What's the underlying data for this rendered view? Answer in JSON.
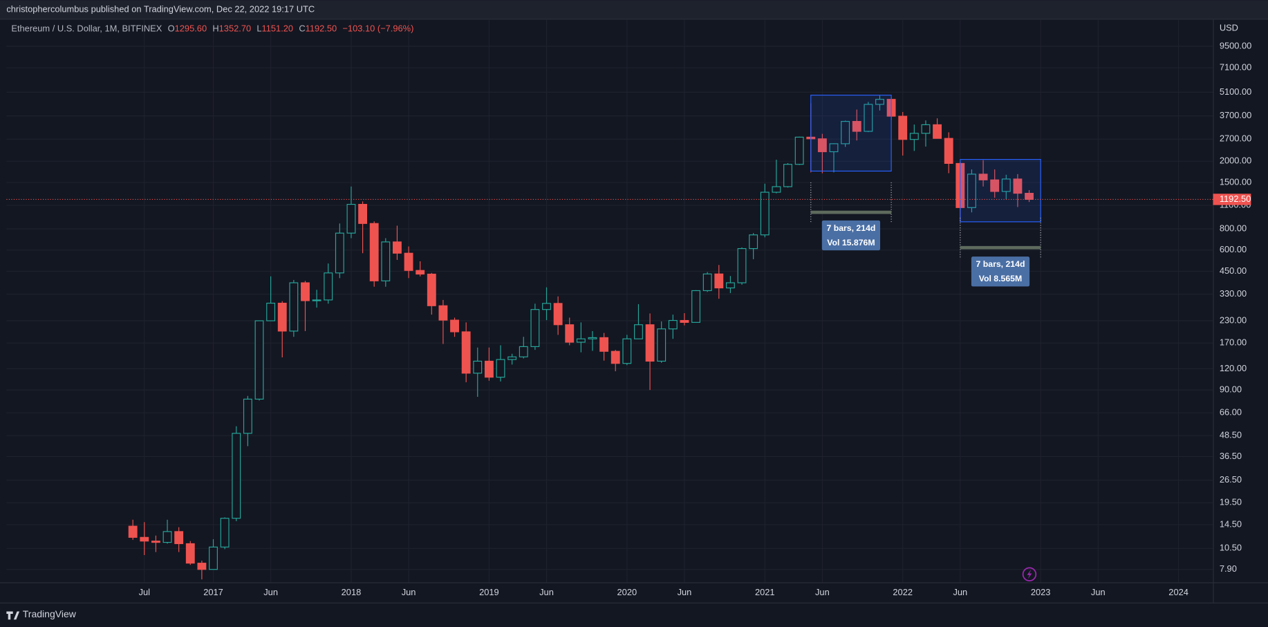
{
  "header": {
    "publisher": "christophercolumbus published on TradingView.com, Dec 22, 2022 19:17 UTC"
  },
  "legend": {
    "symbol": "Ethereum / U.S. Dollar, 1M, BITFINEX",
    "o_label": "O",
    "o": "1295.60",
    "h_label": "H",
    "h": "1352.70",
    "l_label": "L",
    "l": "1151.20",
    "c_label": "C",
    "c": "1192.50",
    "change": "−103.10 (−7.96%)"
  },
  "footer": {
    "brand": "TradingView"
  },
  "chart_data": {
    "type": "candlestick",
    "y_axis_label": "USD",
    "log_scale": true,
    "grid": true,
    "up_color": "#26a69a",
    "down_color": "#ef5350",
    "x": [
      "2016-06",
      "2016-07",
      "2016-08",
      "2016-09",
      "2016-10",
      "2016-11",
      "2016-12",
      "2017-01",
      "2017-02",
      "2017-03",
      "2017-04",
      "2017-05",
      "2017-06",
      "2017-07",
      "2017-08",
      "2017-09",
      "2017-10",
      "2017-11",
      "2017-12",
      "2018-01",
      "2018-02",
      "2018-03",
      "2018-04",
      "2018-05",
      "2018-06",
      "2018-07",
      "2018-08",
      "2018-09",
      "2018-10",
      "2018-11",
      "2018-12",
      "2019-01",
      "2019-02",
      "2019-03",
      "2019-04",
      "2019-05",
      "2019-06",
      "2019-07",
      "2019-08",
      "2019-09",
      "2019-10",
      "2019-11",
      "2019-12",
      "2020-01",
      "2020-02",
      "2020-03",
      "2020-04",
      "2020-05",
      "2020-06",
      "2020-07",
      "2020-08",
      "2020-09",
      "2020-10",
      "2020-11",
      "2020-12",
      "2021-01",
      "2021-02",
      "2021-03",
      "2021-04",
      "2021-05",
      "2021-06",
      "2021-07",
      "2021-08",
      "2021-09",
      "2021-10",
      "2021-11",
      "2021-12",
      "2022-01",
      "2022-02",
      "2022-03",
      "2022-04",
      "2022-05",
      "2022-06",
      "2022-07",
      "2022-08",
      "2022-09",
      "2022-10",
      "2022-11",
      "2022-12"
    ],
    "open": [
      14.2,
      12.2,
      11.6,
      11.4,
      13.2,
      11.2,
      8.6,
      7.9,
      10.7,
      15.8,
      50,
      79.5,
      230,
      292,
      200,
      385,
      302,
      305,
      440,
      755,
      1115,
      860,
      395,
      670,
      575,
      455,
      433,
      282,
      232,
      198,
      113,
      133,
      107,
      136,
      141,
      162,
      268,
      291,
      218,
      172,
      180,
      183,
      152,
      129,
      180,
      218,
      133,
      206,
      231,
      225,
      346,
      434,
      359,
      385,
      612,
      737,
      1314,
      1417,
      1918,
      2773,
      2711,
      2275,
      2536,
      3433,
      3000,
      4324,
      4630,
      3683,
      2688,
      2920,
      3282,
      2727,
      1942,
      1067,
      1679,
      1553,
      1328,
      1572,
      1295.6
    ],
    "high": [
      15.5,
      15.0,
      12.5,
      15.5,
      14.0,
      11.6,
      8.9,
      11.9,
      16.0,
      55,
      83,
      230,
      420,
      300,
      400,
      395,
      350,
      500,
      860,
      1420,
      1160,
      885,
      705,
      835,
      630,
      515,
      440,
      305,
      240,
      225,
      160,
      160,
      165,
      147,
      185,
      290,
      362,
      320,
      240,
      225,
      200,
      195,
      155,
      190,
      288,
      254,
      228,
      250,
      255,
      348,
      445,
      490,
      422,
      622,
      755,
      1475,
      2042,
      1950,
      2790,
      4380,
      2900,
      2550,
      3470,
      4030,
      4470,
      4870,
      4780,
      3900,
      3290,
      3480,
      3580,
      2960,
      1975,
      1790,
      2030,
      1790,
      1665,
      1680,
      1352.7
    ],
    "low": [
      11.8,
      9.6,
      10.0,
      11.2,
      10.0,
      8.4,
      6.9,
      7.9,
      10.4,
      15.2,
      42,
      78,
      230,
      140,
      185,
      200,
      275,
      290,
      410,
      705,
      575,
      365,
      365,
      525,
      410,
      420,
      250,
      168,
      185,
      100,
      82,
      102,
      101,
      127,
      138,
      155,
      232,
      190,
      165,
      150,
      153,
      134,
      116,
      126,
      180,
      90,
      130,
      180,
      216,
      226,
      340,
      310,
      335,
      375,
      530,
      713,
      1295,
      1400,
      1900,
      1720,
      1700,
      1720,
      2430,
      2650,
      2970,
      3980,
      3500,
      2160,
      2300,
      2440,
      2770,
      1700,
      880,
      1000,
      1420,
      1220,
      1190,
      1075,
      1151.2
    ],
    "close": [
      12.2,
      11.6,
      11.4,
      13.2,
      11.2,
      8.6,
      7.9,
      10.7,
      15.8,
      50,
      79.5,
      230,
      292,
      200,
      385,
      302,
      305,
      440,
      755,
      1115,
      860,
      395,
      670,
      575,
      455,
      433,
      282,
      232,
      198,
      113,
      133,
      107,
      136,
      141,
      162,
      268,
      291,
      218,
      172,
      180,
      183,
      152,
      129,
      180,
      218,
      133,
      206,
      231,
      225,
      346,
      434,
      359,
      385,
      612,
      737,
      1314,
      1417,
      1918,
      2773,
      2711,
      2275,
      2536,
      3433,
      3000,
      4324,
      4630,
      3683,
      2688,
      2920,
      3282,
      2727,
      1942,
      1067,
      1679,
      1553,
      1328,
      1572,
      1295.6,
      1192.5
    ],
    "xlim": [
      "2015-07",
      "2024-04"
    ],
    "xticks": [
      {
        "value": "2016-07",
        "label": "Jul"
      },
      {
        "value": "2017-01",
        "label": "2017"
      },
      {
        "value": "2017-06",
        "label": "Jun"
      },
      {
        "value": "2018-01",
        "label": "2018"
      },
      {
        "value": "2018-06",
        "label": "Jun"
      },
      {
        "value": "2019-01",
        "label": "2019"
      },
      {
        "value": "2019-06",
        "label": "Jun"
      },
      {
        "value": "2020-01",
        "label": "2020"
      },
      {
        "value": "2020-06",
        "label": "Jun"
      },
      {
        "value": "2021-01",
        "label": "2021"
      },
      {
        "value": "2021-06",
        "label": "Jun"
      },
      {
        "value": "2022-01",
        "label": "2022"
      },
      {
        "value": "2022-06",
        "label": "Jun"
      },
      {
        "value": "2023-01",
        "label": "2023"
      },
      {
        "value": "2023-06",
        "label": "Jun"
      },
      {
        "value": "2024-01",
        "label": "2024"
      }
    ],
    "ylim": [
      6.63,
      13650
    ],
    "yticks": [
      {
        "value": 9500,
        "label": "9500.00"
      },
      {
        "value": 7100,
        "label": "7100.00"
      },
      {
        "value": 5100,
        "label": "5100.00"
      },
      {
        "value": 3700,
        "label": "3700.00"
      },
      {
        "value": 2700,
        "label": "2700.00"
      },
      {
        "value": 2000,
        "label": "2000.00"
      },
      {
        "value": 1500,
        "label": "1500.00"
      },
      {
        "value": 1100,
        "label": "1100.00"
      },
      {
        "value": 800,
        "label": "800.00"
      },
      {
        "value": 600,
        "label": "600.00"
      },
      {
        "value": 450,
        "label": "450.00"
      },
      {
        "value": 330,
        "label": "330.00"
      },
      {
        "value": 230,
        "label": "230.00"
      },
      {
        "value": 170,
        "label": "170.00"
      },
      {
        "value": 120,
        "label": "120.00"
      },
      {
        "value": 90,
        "label": "90.00"
      },
      {
        "value": 66,
        "label": "66.00"
      },
      {
        "value": 48.5,
        "label": "48.50"
      },
      {
        "value": 36.5,
        "label": "36.50"
      },
      {
        "value": 26.5,
        "label": "26.50"
      },
      {
        "value": 19.5,
        "label": "19.50"
      },
      {
        "value": 14.5,
        "label": "14.50"
      },
      {
        "value": 10.5,
        "label": "10.50"
      },
      {
        "value": 7.9,
        "label": "7.90"
      }
    ],
    "last_price": {
      "value": 1192.5,
      "label": "1192.50"
    },
    "measures": [
      {
        "x": [
          "2021-05",
          "2021-12"
        ],
        "price": [
          1750,
          4900
        ],
        "labels": [
          "7 bars, 214d",
          "Vol 15.876M"
        ]
      },
      {
        "x": [
          "2022-06",
          "2023-01"
        ],
        "price": [
          880,
          2050
        ],
        "labels": [
          "7 bars, 214d",
          "Vol 8.565M"
        ]
      }
    ]
  }
}
